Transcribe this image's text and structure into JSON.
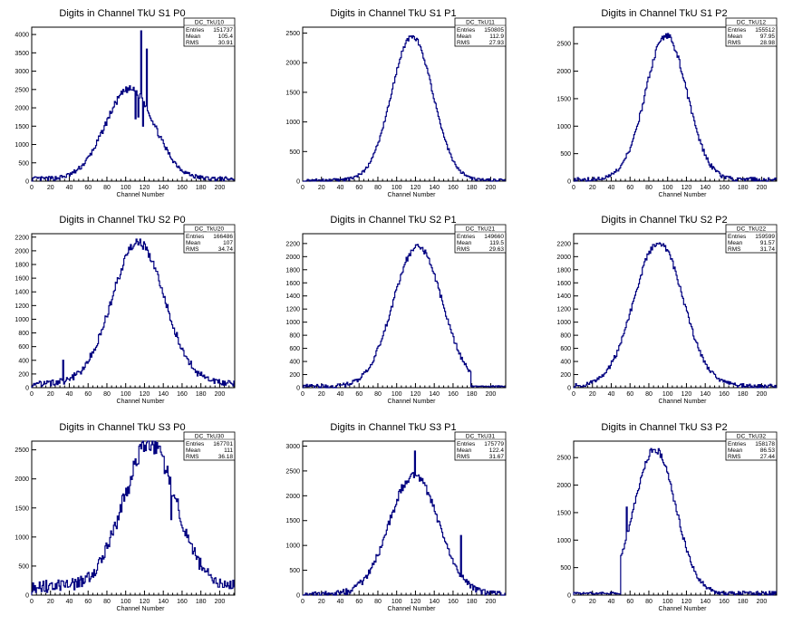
{
  "chart_data": [
    {
      "type": "line",
      "title": "Digits in Channel TkU S1 P0",
      "xlabel": "Channel Number",
      "ylabel": "",
      "xlim": [
        0,
        216
      ],
      "ylim": [
        0,
        4200
      ],
      "xticks": [
        0,
        20,
        40,
        60,
        80,
        100,
        120,
        140,
        160,
        180,
        200
      ],
      "yticks": [
        0,
        500,
        1000,
        1500,
        2000,
        2500,
        3000,
        3500,
        4000
      ],
      "stats": {
        "name": "DC_TkU10",
        "entries": "151737",
        "mean": "105.4",
        "rms": "30.91"
      },
      "profile": {
        "mu": 104,
        "sigma": 26,
        "amp": 2450,
        "base": 60,
        "noise": 90
      },
      "spikes": [
        {
          "x": 110,
          "y": 1700
        },
        {
          "x": 113,
          "y": 1750
        },
        {
          "x": 116,
          "y": 4100
        },
        {
          "x": 118,
          "y": 1500
        },
        {
          "x": 122,
          "y": 3600
        }
      ]
    },
    {
      "type": "line",
      "title": "Digits in Channel TkU S1 P1",
      "xlabel": "Channel Number",
      "ylabel": "",
      "xlim": [
        0,
        216
      ],
      "ylim": [
        0,
        2600
      ],
      "xticks": [
        0,
        20,
        40,
        60,
        80,
        100,
        120,
        140,
        160,
        180,
        200
      ],
      "yticks": [
        0,
        500,
        1000,
        1500,
        2000,
        2500
      ],
      "stats": {
        "name": "DC_TkU11",
        "entries": "150805",
        "mean": "112.9",
        "rms": "27.93"
      },
      "profile": {
        "mu": 116,
        "sigma": 22,
        "amp": 2430,
        "base": 15,
        "noise": 40
      },
      "spikes": []
    },
    {
      "type": "line",
      "title": "Digits in Channel TkU S1 P2",
      "xlabel": "Channel Number",
      "ylabel": "",
      "xlim": [
        0,
        216
      ],
      "ylim": [
        0,
        2800
      ],
      "xticks": [
        0,
        20,
        40,
        60,
        80,
        100,
        120,
        140,
        160,
        180,
        200
      ],
      "yticks": [
        0,
        500,
        1000,
        1500,
        2000,
        2500
      ],
      "stats": {
        "name": "DC_TkU12",
        "entries": "155512",
        "mean": "97.95",
        "rms": "28.98"
      },
      "profile": {
        "mu": 98,
        "sigma": 22,
        "amp": 2620,
        "base": 30,
        "noise": 60
      },
      "spikes": []
    },
    {
      "type": "line",
      "title": "Digits in Channel TkU S2 P0",
      "xlabel": "Channel Number",
      "ylabel": "",
      "xlim": [
        0,
        216
      ],
      "ylim": [
        0,
        2250
      ],
      "xticks": [
        0,
        20,
        40,
        60,
        80,
        100,
        120,
        140,
        160,
        180,
        200
      ],
      "yticks": [
        0,
        200,
        400,
        600,
        800,
        1000,
        1200,
        1400,
        1600,
        1800,
        2000,
        2200
      ],
      "stats": {
        "name": "DC_TkU20",
        "entries": "166486",
        "mean": "107",
        "rms": "34.74"
      },
      "profile": {
        "mu": 113,
        "sigma": 28,
        "amp": 2050,
        "base": 60,
        "noise": 70
      },
      "spikes": [
        {
          "x": 33,
          "y": 400
        }
      ]
    },
    {
      "type": "line",
      "title": "Digits in Channel TkU S2 P1",
      "xlabel": "Channel Number",
      "ylabel": "",
      "xlim": [
        0,
        216
      ],
      "ylim": [
        0,
        2350
      ],
      "xticks": [
        0,
        20,
        40,
        60,
        80,
        100,
        120,
        140,
        160,
        180,
        200
      ],
      "yticks": [
        0,
        200,
        400,
        600,
        800,
        1000,
        1200,
        1400,
        1600,
        1800,
        2000,
        2200
      ],
      "stats": {
        "name": "DC_TkU21",
        "entries": "149660",
        "mean": "119.5",
        "rms": "29.63"
      },
      "profile": {
        "mu": 122,
        "sigma": 26,
        "amp": 2140,
        "base": 20,
        "noise": 50,
        "cut": 178
      },
      "spikes": []
    },
    {
      "type": "line",
      "title": "Digits in Channel TkU S2 P2",
      "xlabel": "Channel Number",
      "ylabel": "",
      "xlim": [
        0,
        216
      ],
      "ylim": [
        0,
        2350
      ],
      "xticks": [
        0,
        20,
        40,
        60,
        80,
        100,
        120,
        140,
        160,
        180,
        200
      ],
      "yticks": [
        0,
        200,
        400,
        600,
        800,
        1000,
        1200,
        1400,
        1600,
        1800,
        2000,
        2200
      ],
      "stats": {
        "name": "DC_TkU22",
        "entries": "159599",
        "mean": "91.57",
        "rms": "31.74"
      },
      "profile": {
        "mu": 90,
        "sigma": 26,
        "amp": 2200,
        "base": 25,
        "noise": 50
      },
      "spikes": []
    },
    {
      "type": "line",
      "title": "Digits in Channel TkU S3 P0",
      "xlabel": "Channel Number",
      "ylabel": "",
      "xlim": [
        0,
        216
      ],
      "ylim": [
        0,
        2650
      ],
      "xticks": [
        0,
        20,
        40,
        60,
        80,
        100,
        120,
        140,
        160,
        180,
        200
      ],
      "yticks": [
        0,
        500,
        1000,
        1500,
        2000,
        2500
      ],
      "stats": {
        "name": "DC_TkU30",
        "entries": "167701",
        "mean": "111",
        "rms": "36.18"
      },
      "profile": {
        "mu": 125,
        "sigma": 28,
        "amp": 2450,
        "base": 150,
        "noise": 150
      },
      "spikes": [
        {
          "x": 103,
          "y": 1750
        },
        {
          "x": 148,
          "y": 1300
        }
      ]
    },
    {
      "type": "line",
      "title": "Digits in Channel TkU S3 P1",
      "xlabel": "Channel Number",
      "ylabel": "",
      "xlim": [
        0,
        216
      ],
      "ylim": [
        0,
        3100
      ],
      "xticks": [
        0,
        20,
        40,
        60,
        80,
        100,
        120,
        140,
        160,
        180,
        200
      ],
      "yticks": [
        0,
        500,
        1000,
        1500,
        2000,
        2500,
        3000
      ],
      "stats": {
        "name": "DC_TkU31",
        "entries": "175779",
        "mean": "122.4",
        "rms": "31.67"
      },
      "profile": {
        "mu": 118,
        "sigma": 26,
        "amp": 2400,
        "base": 20,
        "noise": 90
      },
      "spikes": [
        {
          "x": 119,
          "y": 2900
        },
        {
          "x": 168,
          "y": 1200
        }
      ]
    },
    {
      "type": "line",
      "title": "Digits in Channel TkU S3 P2",
      "xlabel": "Channel Number",
      "ylabel": "",
      "xlim": [
        0,
        216
      ],
      "ylim": [
        0,
        2800
      ],
      "xticks": [
        0,
        20,
        40,
        60,
        80,
        100,
        120,
        140,
        160,
        180,
        200
      ],
      "yticks": [
        0,
        500,
        1000,
        1500,
        2000,
        2500
      ],
      "stats": {
        "name": "DC_TkU32",
        "entries": "158178",
        "mean": "86.53",
        "rms": "27.44"
      },
      "profile": {
        "mu": 86,
        "sigma": 22,
        "amp": 2620,
        "base": 30,
        "noise": 60,
        "gapBefore": 50
      },
      "spikes": [
        {
          "x": 56,
          "y": 1600
        }
      ]
    }
  ],
  "colors": {
    "line": "#000080",
    "axis": "#000000",
    "background": "#ffffff"
  }
}
